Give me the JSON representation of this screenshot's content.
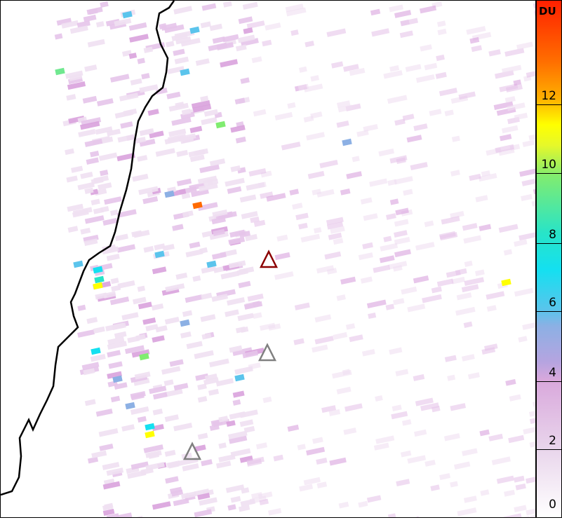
{
  "colorbar": {
    "unit": "DU",
    "ticks": [
      "0",
      "2",
      "4",
      "6",
      "8",
      "10",
      "12"
    ],
    "range": [
      0,
      14
    ],
    "colors": [
      "#ffffff",
      "#e9d6ec",
      "#d9a8dc",
      "#8cb0e4",
      "#14e0f0",
      "#80ec70",
      "#ffff00",
      "#ff7000",
      "#ff2000"
    ]
  },
  "map": {
    "coastline_color": "#000000",
    "markers": [
      {
        "type": "triangle",
        "color": "#8b0000"
      },
      {
        "type": "triangle",
        "color": "#808080"
      },
      {
        "type": "triangle",
        "color": "#808080"
      }
    ]
  }
}
